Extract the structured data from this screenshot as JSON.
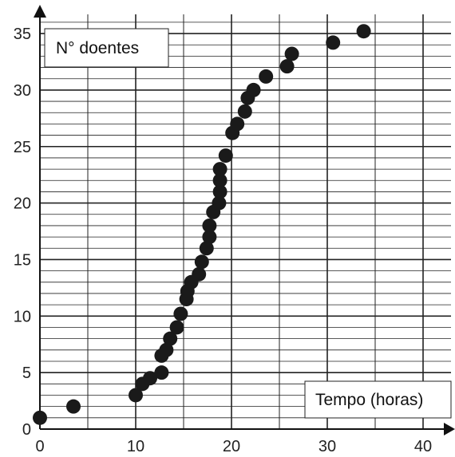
{
  "chart_data": {
    "type": "scatter",
    "ylabel": "N° doentes",
    "xlabel": "Tempo (horas)",
    "xlim": [
      0,
      43
    ],
    "ylim": [
      0,
      36
    ],
    "x_ticks": [
      0,
      10,
      20,
      30,
      40
    ],
    "y_ticks": [
      0,
      5,
      10,
      15,
      20,
      25,
      30,
      35
    ],
    "grid": true,
    "series": [
      {
        "points": [
          [
            0,
            1
          ],
          [
            3.5,
            2
          ],
          [
            10,
            3
          ],
          [
            10.7,
            4
          ],
          [
            11.5,
            4.5
          ],
          [
            12.7,
            5
          ],
          [
            12.7,
            6.5
          ],
          [
            13.2,
            7
          ],
          [
            13.6,
            8
          ],
          [
            14.3,
            9
          ],
          [
            14.7,
            10.2
          ],
          [
            15.3,
            11.5
          ],
          [
            15.4,
            12.2
          ],
          [
            15.8,
            13
          ],
          [
            16.6,
            13.7
          ],
          [
            16.9,
            14.8
          ],
          [
            17.4,
            16
          ],
          [
            17.7,
            17
          ],
          [
            17.7,
            18
          ],
          [
            18.1,
            19.2
          ],
          [
            18.7,
            20
          ],
          [
            18.8,
            21
          ],
          [
            18.8,
            22
          ],
          [
            18.8,
            23
          ],
          [
            19.4,
            24.2
          ],
          [
            20.1,
            26.2
          ],
          [
            20.6,
            27
          ],
          [
            21.4,
            28.1
          ],
          [
            21.7,
            29.3
          ],
          [
            22.3,
            30
          ],
          [
            23.6,
            31.2
          ],
          [
            25.8,
            32.1
          ],
          [
            26.3,
            33.2
          ],
          [
            30.6,
            34.2
          ],
          [
            33.8,
            35.2
          ]
        ]
      }
    ]
  }
}
